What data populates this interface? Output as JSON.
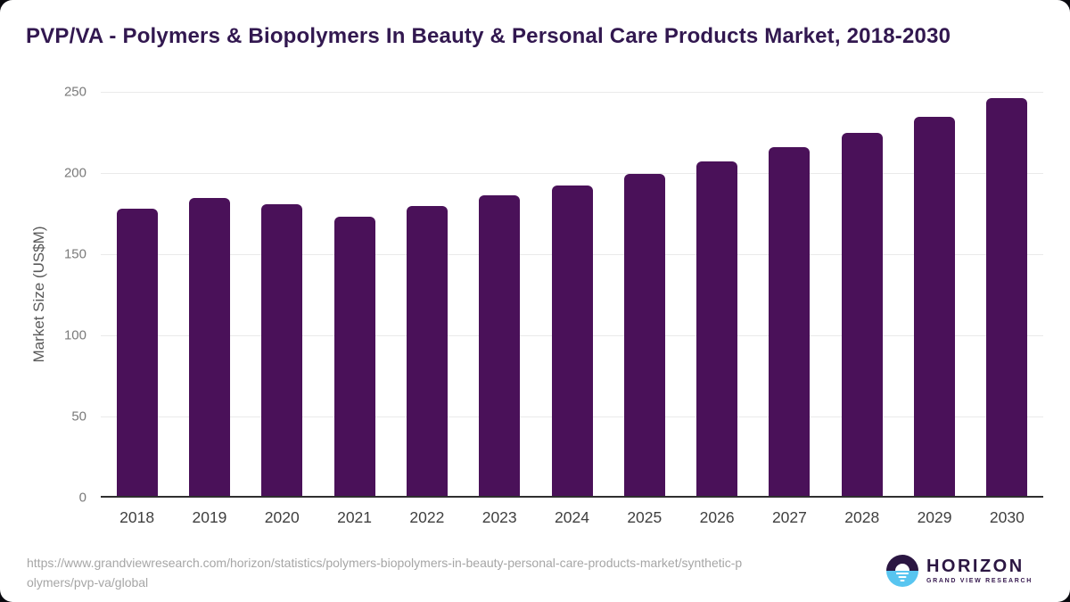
{
  "title": "PVP/VA - Polymers & Biopolymers In Beauty & Personal Care Products Market, 2018-2030",
  "chart_data": {
    "type": "bar",
    "categories": [
      "2018",
      "2019",
      "2020",
      "2021",
      "2022",
      "2023",
      "2024",
      "2025",
      "2026",
      "2027",
      "2028",
      "2029",
      "2030"
    ],
    "values": [
      178,
      184.5,
      181,
      173,
      179.5,
      186,
      192.5,
      199.5,
      207,
      216,
      225,
      234.5,
      246
    ],
    "title": "PVP/VA - Polymers & Biopolymers In Beauty & Personal Care Products Market, 2018-2030",
    "xlabel": "",
    "ylabel": "Market Size (US$M)",
    "ylim": [
      0,
      250
    ],
    "yticks": [
      0,
      50,
      100,
      150,
      200,
      250
    ],
    "grid": "horizontal-light",
    "legend": "none",
    "bar_color": "#4A1159"
  },
  "footer": {
    "source_url_line1": "https://www.grandviewresearch.com/horizon/statistics/polymers-biopolymers-in-beauty-personal-care-products-market/synthetic-p",
    "source_url_line2": "olymers/pvp-va/global",
    "logo": {
      "brand": "HORIZON",
      "sub_brand": "GRAND VIEW RESEARCH"
    }
  },
  "colors": {
    "bar": "#4A1159",
    "title_text": "#321850",
    "x_tick_text": "#3F3F3F",
    "y_tick_text": "#7A7A7A",
    "gridline": "#EAEAEA",
    "axis_baseline": "#2F2F2F",
    "url_text": "#A6A6A6",
    "logo_purple": "#2B1642",
    "logo_blue": "#58C5F0",
    "corner_background": "#0A0A0F"
  }
}
